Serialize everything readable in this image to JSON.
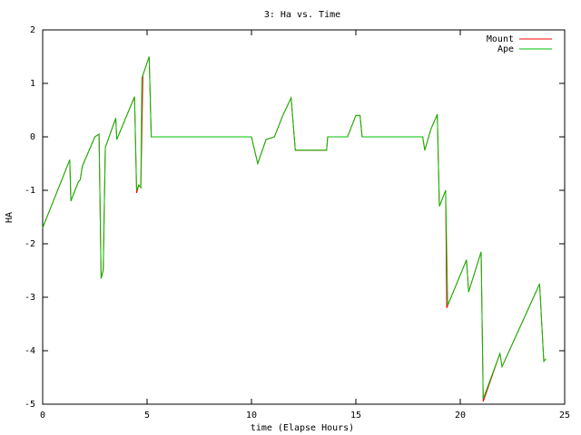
{
  "chart_data": {
    "type": "line",
    "title": "3: Ha vs. Time",
    "xlabel": "time (Elapse Hours)",
    "ylabel": "HA",
    "xlim": [
      0,
      25
    ],
    "ylim": [
      -5,
      2
    ],
    "xticks": [
      0,
      5,
      10,
      15,
      20,
      25
    ],
    "yticks": [
      -5,
      -4,
      -3,
      -2,
      -1,
      0,
      1,
      2
    ],
    "grid": false,
    "legend": "top-right",
    "series": [
      {
        "name": "Mount",
        "color": "#ff0000",
        "x": [
          0,
          1.3,
          1.35,
          1.7,
          1.8,
          1.9,
          2.5,
          2.7,
          2.8,
          2.9,
          3.0,
          3.5,
          3.55,
          4.4,
          4.5,
          4.6,
          4.7,
          4.8,
          5.1,
          5.2,
          10.0,
          10.3,
          10.7,
          11.1,
          11.5,
          11.9,
          12.1,
          13.6,
          13.65,
          14.6,
          15.0,
          15.2,
          15.3,
          18.2,
          18.3,
          18.6,
          18.9,
          19.0,
          19.3,
          19.35,
          20.3,
          20.4,
          21.0,
          21.1,
          21.9,
          22.0,
          23.8,
          24.0,
          24.1
        ],
        "values": [
          -1.7,
          -0.43,
          -1.2,
          -0.85,
          -0.8,
          -0.55,
          0.0,
          0.05,
          -2.65,
          -2.5,
          -0.2,
          0.35,
          -0.05,
          0.75,
          -1.05,
          -0.9,
          -0.95,
          1.15,
          1.5,
          0.0,
          0.0,
          -0.5,
          -0.05,
          0.0,
          0.4,
          0.73,
          -0.25,
          -0.25,
          0.0,
          0.0,
          0.4,
          0.4,
          0.0,
          0.0,
          -0.25,
          0.15,
          0.42,
          -1.3,
          -1.0,
          -3.2,
          -2.3,
          -2.9,
          -2.15,
          -4.95,
          -4.05,
          -4.3,
          -2.75,
          -4.2,
          -4.15
        ]
      },
      {
        "name": "Ape",
        "color": "#00c000",
        "x": [
          0,
          1.3,
          1.35,
          1.7,
          1.8,
          1.9,
          2.5,
          2.7,
          2.8,
          2.9,
          3.0,
          3.5,
          3.55,
          4.4,
          4.5,
          4.6,
          4.7,
          4.75,
          5.1,
          5.2,
          10.0,
          10.3,
          10.7,
          11.1,
          11.5,
          11.9,
          12.1,
          13.6,
          13.65,
          14.6,
          15.0,
          15.2,
          15.3,
          18.2,
          18.3,
          18.6,
          18.9,
          19.0,
          19.3,
          19.4,
          20.3,
          20.4,
          21.0,
          21.1,
          21.9,
          22.0,
          23.8,
          24.0,
          24.1
        ],
        "values": [
          -1.7,
          -0.43,
          -1.2,
          -0.85,
          -0.8,
          -0.55,
          0.0,
          0.05,
          -2.65,
          -2.5,
          -0.2,
          0.35,
          -0.05,
          0.75,
          -1.0,
          -0.9,
          -0.95,
          1.1,
          1.5,
          0.0,
          0.0,
          -0.5,
          -0.05,
          0.0,
          0.4,
          0.73,
          -0.25,
          -0.25,
          0.0,
          0.0,
          0.4,
          0.4,
          0.0,
          0.0,
          -0.25,
          0.15,
          0.42,
          -1.3,
          -1.0,
          -3.15,
          -2.3,
          -2.9,
          -2.15,
          -4.9,
          -4.05,
          -4.3,
          -2.75,
          -4.2,
          -4.15
        ]
      }
    ]
  }
}
